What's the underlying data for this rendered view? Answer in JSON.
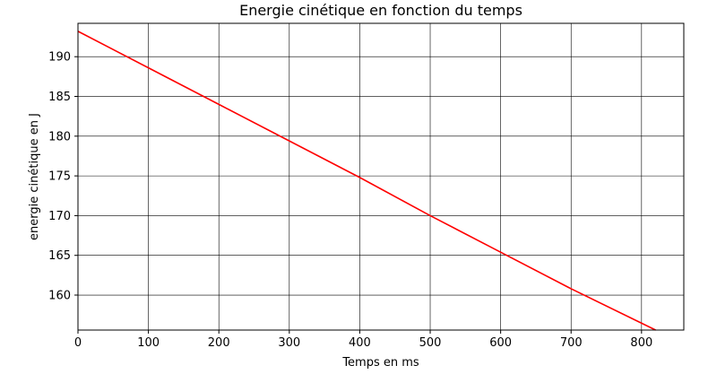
{
  "chart_data": {
    "type": "line",
    "title": "Energie cinétique en fonction du temps",
    "xlabel": "Temps en ms",
    "ylabel": "energie cinétique en J",
    "xlim": [
      0,
      860
    ],
    "ylim": [
      155.6,
      194.2
    ],
    "x_ticks": [
      0,
      100,
      200,
      300,
      400,
      500,
      600,
      700,
      800
    ],
    "y_ticks": [
      160,
      165,
      170,
      175,
      180,
      185,
      190
    ],
    "grid": true,
    "series": [
      {
        "color": "#ff0000",
        "x": [
          0,
          100,
          200,
          300,
          400,
          500,
          600,
          700,
          820
        ],
        "y": [
          193.2,
          188.6,
          184.0,
          179.4,
          174.8,
          170.0,
          165.4,
          160.8,
          155.6
        ]
      }
    ]
  }
}
